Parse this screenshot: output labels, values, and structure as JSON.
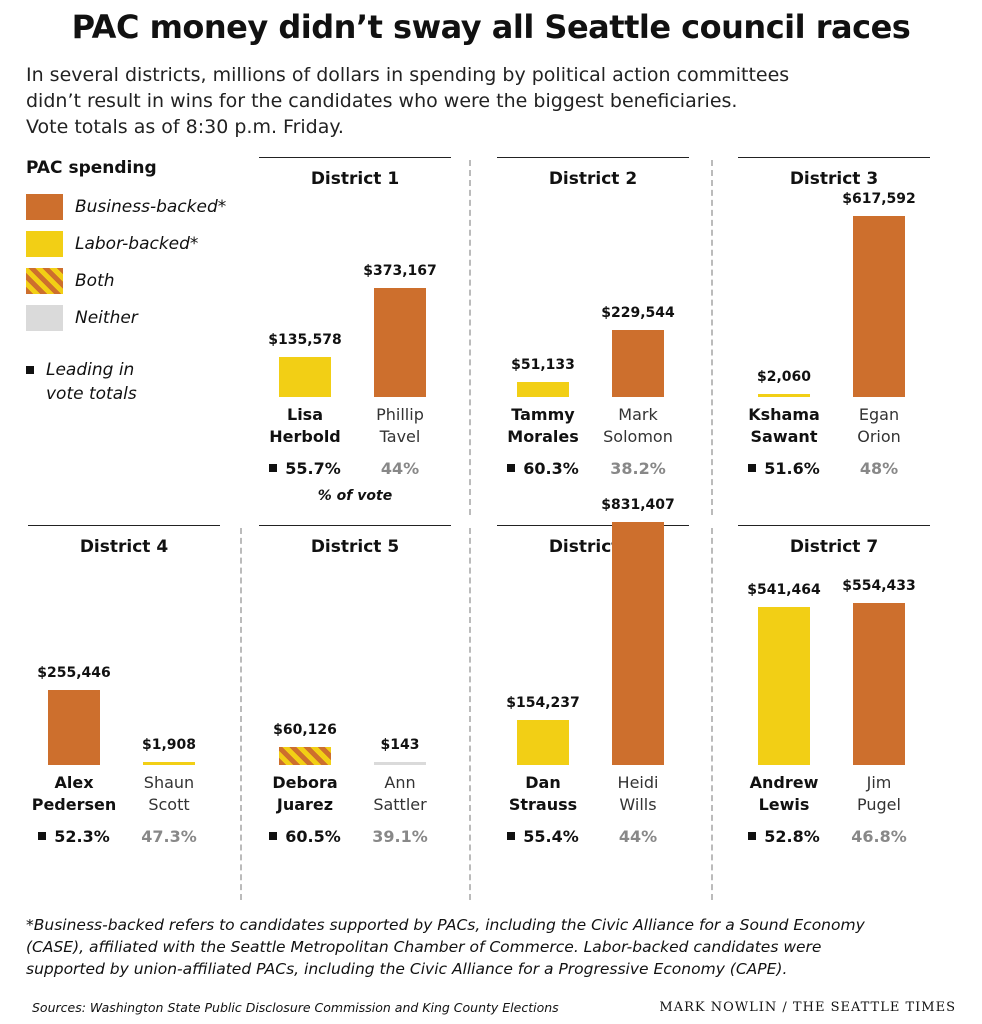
{
  "colors": {
    "business": "#cd6f2d",
    "labor": "#f2cf15",
    "both_stripe_a": "#cd6f2d",
    "both_stripe_b": "#f2cf15",
    "neither": "#dadada"
  },
  "title": "PAC money didn’t sway all Seattle council races",
  "subtitle_lines": [
    "In several districts, millions of dollars in spending by political action committees",
    "didn’t result in wins for the candidates who were the biggest beneficiaries.",
    "Vote totals as of 8:30 p.m. Friday."
  ],
  "legend": {
    "title": "PAC spending",
    "items": [
      {
        "label": "Business-backed*",
        "category": "business"
      },
      {
        "label": "Labor-backed*",
        "category": "labor"
      },
      {
        "label": "Both",
        "category": "both"
      },
      {
        "label": "Neither",
        "category": "neither"
      }
    ],
    "leading_note_lines": [
      "Leading in",
      "vote totals"
    ]
  },
  "pct_note": "% of vote",
  "chart_data": {
    "type": "bar",
    "value_unit": "USD of PAC spending",
    "districts": [
      {
        "district": "District 1",
        "candidates": [
          {
            "name_lines": [
              "Lisa",
              "Herbold"
            ],
            "amount": 135578,
            "amount_label": "$135,578",
            "pac": "labor",
            "vote_pct": 55.7,
            "vote_label": "55.7%",
            "leading": true
          },
          {
            "name_lines": [
              "Phillip",
              "Tavel"
            ],
            "amount": 373167,
            "amount_label": "$373,167",
            "pac": "business",
            "vote_pct": 44,
            "vote_label": "44%",
            "leading": false
          }
        ]
      },
      {
        "district": "District 2",
        "candidates": [
          {
            "name_lines": [
              "Tammy",
              "Morales"
            ],
            "amount": 51133,
            "amount_label": "$51,133",
            "pac": "labor",
            "vote_pct": 60.3,
            "vote_label": "60.3%",
            "leading": true
          },
          {
            "name_lines": [
              "Mark",
              "Solomon"
            ],
            "amount": 229544,
            "amount_label": "$229,544",
            "pac": "business",
            "vote_pct": 38.2,
            "vote_label": "38.2%",
            "leading": false
          }
        ]
      },
      {
        "district": "District 3",
        "candidates": [
          {
            "name_lines": [
              "Kshama",
              "Sawant"
            ],
            "amount": 2060,
            "amount_label": "$2,060",
            "pac": "labor",
            "vote_pct": 51.6,
            "vote_label": "51.6%",
            "leading": true
          },
          {
            "name_lines": [
              "Egan",
              "Orion"
            ],
            "amount": 617592,
            "amount_label": "$617,592",
            "pac": "business",
            "vote_pct": 48,
            "vote_label": "48%",
            "leading": false
          }
        ]
      },
      {
        "district": "District 4",
        "candidates": [
          {
            "name_lines": [
              "Alex",
              "Pedersen"
            ],
            "amount": 255446,
            "amount_label": "$255,446",
            "pac": "business",
            "vote_pct": 52.3,
            "vote_label": "52.3%",
            "leading": true
          },
          {
            "name_lines": [
              "Shaun",
              "Scott"
            ],
            "amount": 1908,
            "amount_label": "$1,908",
            "pac": "labor",
            "vote_pct": 47.3,
            "vote_label": "47.3%",
            "leading": false
          }
        ]
      },
      {
        "district": "District 5",
        "candidates": [
          {
            "name_lines": [
              "Debora",
              "Juarez"
            ],
            "amount": 60126,
            "amount_label": "$60,126",
            "pac": "both",
            "vote_pct": 60.5,
            "vote_label": "60.5%",
            "leading": true
          },
          {
            "name_lines": [
              "Ann",
              "Sattler"
            ],
            "amount": 143,
            "amount_label": "$143",
            "pac": "neither",
            "vote_pct": 39.1,
            "vote_label": "39.1%",
            "leading": false
          }
        ]
      },
      {
        "district": "District 6",
        "candidates": [
          {
            "name_lines": [
              "Dan",
              "Strauss"
            ],
            "amount": 154237,
            "amount_label": "$154,237",
            "pac": "labor",
            "vote_pct": 55.4,
            "vote_label": "55.4%",
            "leading": true
          },
          {
            "name_lines": [
              "Heidi",
              "Wills"
            ],
            "amount": 831407,
            "amount_label": "$831,407",
            "pac": "business",
            "vote_pct": 44,
            "vote_label": "44%",
            "leading": false
          }
        ]
      },
      {
        "district": "District 7",
        "candidates": [
          {
            "name_lines": [
              "Andrew",
              "Lewis"
            ],
            "amount": 541464,
            "amount_label": "$541,464",
            "pac": "labor",
            "vote_pct": 52.8,
            "vote_label": "52.8%",
            "leading": true
          },
          {
            "name_lines": [
              "Jim",
              "Pugel"
            ],
            "amount": 554433,
            "amount_label": "$554,433",
            "pac": "business",
            "vote_pct": 46.8,
            "vote_label": "46.8%",
            "leading": false
          }
        ]
      }
    ]
  },
  "footnote_lines": [
    "*Business-backed refers to candidates supported by PACs, including the Civic Alliance for a Sound Economy",
    "(CASE), affiliated with the Seattle Metropolitan Chamber of Commerce. Labor-backed candidates were",
    "supported by union-affiliated PACs, including the Civic Alliance for a Progressive Economy (CAPE)."
  ],
  "sources": "Sources: Washington State Public Disclosure Commission and King County Elections",
  "credit": "MARK NOWLIN / THE SEATTLE TIMES"
}
